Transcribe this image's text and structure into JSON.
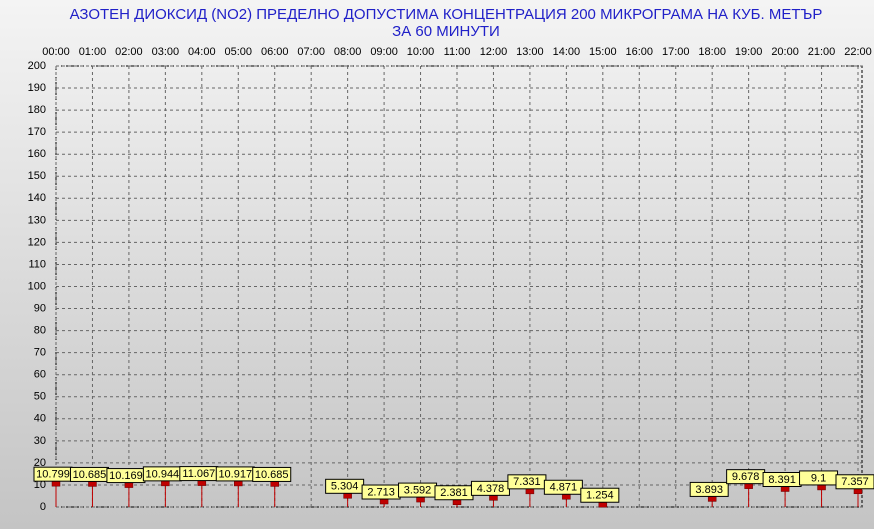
{
  "chart_data": {
    "type": "point",
    "title": "АЗОТЕН ДИОКСИД   (NO2)     ПРЕДЕЛНО ДОПУСТИМА КОНЦЕНТРАЦИЯ 200 МИКРОГРАМА  НА КУБ. МЕТЪР",
    "subtitle": "ЗА 60 МИНУТИ",
    "categories": [
      "00:00",
      "01:00",
      "02:00",
      "03:00",
      "04:00",
      "05:00",
      "06:00",
      "07:00",
      "08:00",
      "09:00",
      "10:00",
      "11:00",
      "12:00",
      "13:00",
      "14:00",
      "15:00",
      "16:00",
      "17:00",
      "18:00",
      "19:00",
      "20:00",
      "21:00",
      "22:00"
    ],
    "values": [
      10.799,
      10.685,
      10.169,
      10.944,
      11.067,
      10.917,
      10.685,
      null,
      5.304,
      2.713,
      3.592,
      2.381,
      4.378,
      7.331,
      4.871,
      1.254,
      null,
      null,
      3.893,
      9.678,
      8.391,
      9.1,
      7.357
    ],
    "color": "#c00000",
    "ylim": [
      0,
      200
    ],
    "yticks": [
      0,
      10,
      20,
      30,
      40,
      50,
      60,
      70,
      80,
      90,
      100,
      110,
      120,
      130,
      140,
      150,
      160,
      170,
      180,
      190,
      200
    ],
    "grid": true
  }
}
